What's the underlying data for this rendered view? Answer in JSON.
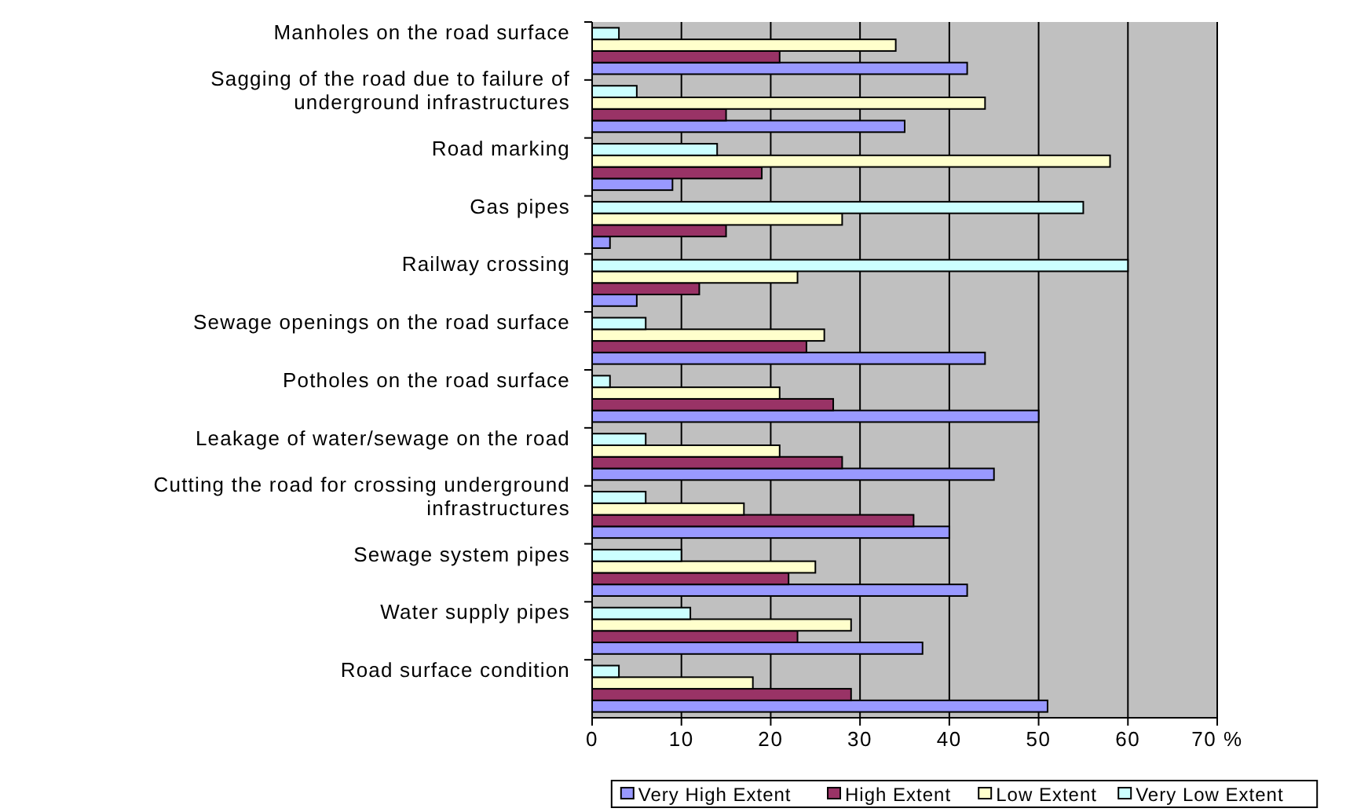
{
  "chart_data": {
    "type": "bar",
    "orientation": "horizontal",
    "categories": [
      "Manholes on the road surface",
      "Sagging of the road due to failure of underground infrastructures",
      "Road marking",
      "Gas pipes",
      "Railway crossing",
      "Sewage openings on the road surface",
      "Potholes on the road surface",
      "Leakage of water/sewage on the road",
      "Cutting the road for crossing underground infrastructures",
      "Sewage system pipes",
      "Water supply pipes",
      "Road surface condition"
    ],
    "series": [
      {
        "name": "Very High Extent",
        "color": "#9999ff",
        "values": [
          42,
          35,
          9,
          2,
          5,
          44,
          50,
          45,
          40,
          42,
          37,
          51
        ]
      },
      {
        "name": "High Extent",
        "color": "#993366",
        "values": [
          21,
          15,
          19,
          15,
          12,
          24,
          27,
          28,
          36,
          22,
          23,
          29
        ]
      },
      {
        "name": "Low Extent",
        "color": "#ffffcc",
        "values": [
          34,
          44,
          58,
          28,
          23,
          26,
          21,
          21,
          17,
          25,
          29,
          18
        ]
      },
      {
        "name": "Very Low Extent",
        "color": "#ccffff",
        "values": [
          3,
          5,
          14,
          55,
          60,
          6,
          2,
          6,
          6,
          10,
          11,
          3
        ]
      }
    ],
    "xlim": [
      0,
      70
    ],
    "xticks": [
      0,
      10,
      20,
      30,
      40,
      50,
      60,
      {
        "value": 70,
        "label": "70 %"
      }
    ],
    "grid": "x",
    "legend": "bottom"
  }
}
